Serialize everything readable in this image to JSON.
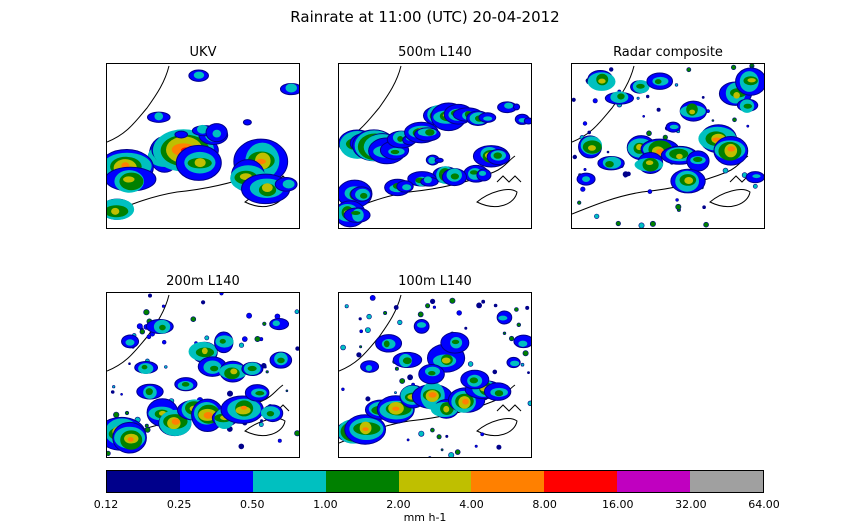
{
  "title": "Rainrate at 11:00 (UTC) 20-04-2012",
  "panels": [
    {
      "title": "UKV",
      "style": "smooth",
      "cells": [
        [
          0.3,
          0.55,
          4
        ],
        [
          0.4,
          0.52,
          6
        ],
        [
          0.48,
          0.6,
          4
        ],
        [
          0.55,
          0.43,
          3
        ],
        [
          0.1,
          0.62,
          5
        ],
        [
          0.12,
          0.7,
          4
        ],
        [
          0.05,
          0.88,
          4
        ],
        [
          0.8,
          0.58,
          5
        ],
        [
          0.72,
          0.68,
          4
        ],
        [
          0.82,
          0.75,
          4
        ],
        [
          0.95,
          0.15,
          2
        ],
        [
          0.47,
          0.07,
          2
        ],
        [
          0.27,
          0.32,
          2
        ],
        [
          0.93,
          0.72,
          2
        ],
        [
          0.5,
          0.4,
          2
        ],
        [
          0.73,
          0.36,
          1
        ],
        [
          0.57,
          0.42,
          2
        ],
        [
          0.38,
          0.42,
          1
        ]
      ]
    },
    {
      "title": "500m L140",
      "style": "band",
      "cells": [
        [
          0.1,
          0.48,
          5
        ],
        [
          0.18,
          0.49,
          6
        ],
        [
          0.25,
          0.52,
          4
        ],
        [
          0.32,
          0.45,
          3
        ],
        [
          0.42,
          0.41,
          4
        ],
        [
          0.52,
          0.31,
          5
        ],
        [
          0.62,
          0.3,
          4
        ],
        [
          0.72,
          0.32,
          3
        ],
        [
          0.78,
          0.55,
          4
        ],
        [
          0.7,
          0.66,
          3
        ],
        [
          0.55,
          0.67,
          4
        ],
        [
          0.42,
          0.7,
          3
        ],
        [
          0.3,
          0.74,
          3
        ],
        [
          0.08,
          0.78,
          4
        ],
        [
          0.05,
          0.9,
          4
        ],
        [
          0.87,
          0.26,
          2
        ],
        [
          0.94,
          0.33,
          2
        ],
        [
          0.48,
          0.58,
          2
        ]
      ]
    },
    {
      "title": "Radar composite",
      "style": "scatter",
      "cells": [
        [
          0.15,
          0.1,
          4
        ],
        [
          0.25,
          0.2,
          3
        ],
        [
          0.35,
          0.13,
          3
        ],
        [
          0.45,
          0.1,
          3
        ],
        [
          0.62,
          0.28,
          4
        ],
        [
          0.85,
          0.18,
          4
        ],
        [
          0.9,
          0.25,
          3
        ],
        [
          0.1,
          0.5,
          4
        ],
        [
          0.35,
          0.5,
          4
        ],
        [
          0.45,
          0.52,
          5
        ],
        [
          0.55,
          0.55,
          4
        ],
        [
          0.75,
          0.45,
          5
        ],
        [
          0.82,
          0.52,
          5
        ],
        [
          0.65,
          0.58,
          3
        ],
        [
          0.4,
          0.6,
          4
        ],
        [
          0.6,
          0.7,
          4
        ],
        [
          0.2,
          0.6,
          3
        ],
        [
          0.08,
          0.7,
          2
        ],
        [
          0.95,
          0.68,
          2
        ],
        [
          0.52,
          0.38,
          2
        ],
        [
          0.92,
          0.1,
          4
        ]
      ]
    },
    {
      "title": "200m L140",
      "style": "scatter",
      "cells": [
        [
          0.08,
          0.84,
          5
        ],
        [
          0.12,
          0.88,
          5
        ],
        [
          0.22,
          0.6,
          3
        ],
        [
          0.28,
          0.72,
          4
        ],
        [
          0.35,
          0.78,
          5
        ],
        [
          0.45,
          0.7,
          4
        ],
        [
          0.52,
          0.73,
          5
        ],
        [
          0.6,
          0.75,
          4
        ],
        [
          0.7,
          0.7,
          5
        ],
        [
          0.78,
          0.6,
          3
        ],
        [
          0.85,
          0.72,
          3
        ],
        [
          0.5,
          0.35,
          4
        ],
        [
          0.55,
          0.45,
          3
        ],
        [
          0.65,
          0.48,
          4
        ],
        [
          0.75,
          0.45,
          3
        ],
        [
          0.6,
          0.3,
          3
        ],
        [
          0.28,
          0.2,
          3
        ],
        [
          0.2,
          0.45,
          3
        ],
        [
          0.9,
          0.4,
          3
        ],
        [
          0.12,
          0.3,
          2
        ],
        [
          0.4,
          0.55,
          3
        ],
        [
          0.88,
          0.18,
          2
        ]
      ]
    },
    {
      "title": "100m L140",
      "style": "scatter",
      "cells": [
        [
          0.08,
          0.84,
          5
        ],
        [
          0.14,
          0.82,
          5
        ],
        [
          0.22,
          0.7,
          4
        ],
        [
          0.3,
          0.7,
          5
        ],
        [
          0.38,
          0.62,
          4
        ],
        [
          0.48,
          0.62,
          5
        ],
        [
          0.55,
          0.7,
          4
        ],
        [
          0.65,
          0.65,
          5
        ],
        [
          0.75,
          0.58,
          4
        ],
        [
          0.82,
          0.6,
          3
        ],
        [
          0.7,
          0.52,
          3
        ],
        [
          0.55,
          0.4,
          4
        ],
        [
          0.6,
          0.3,
          3
        ],
        [
          0.35,
          0.4,
          3
        ],
        [
          0.48,
          0.48,
          3
        ],
        [
          0.9,
          0.42,
          2
        ],
        [
          0.15,
          0.45,
          2
        ],
        [
          0.25,
          0.3,
          3
        ],
        [
          0.85,
          0.15,
          2
        ],
        [
          0.42,
          0.2,
          2
        ],
        [
          0.95,
          0.3,
          2
        ]
      ]
    }
  ],
  "colorbar": {
    "label": "mm h-1",
    "ticks": [
      "0.12",
      "0.25",
      "0.50",
      "1.00",
      "2.00",
      "4.00",
      "8.00",
      "16.00",
      "32.00",
      "64.00"
    ],
    "colors": [
      "#00008b",
      "#0000ff",
      "#00c0c0",
      "#008000",
      "#bfbf00",
      "#ff8000",
      "#ff0000",
      "#c000c0",
      "#a0a0a0"
    ]
  },
  "chart_data": {
    "type": "heatmap",
    "title": "Rainrate at 11:00 (UTC) 20-04-2012",
    "subplots": [
      "UKV",
      "500m L140",
      "Radar composite",
      "200m L140",
      "100m L140"
    ],
    "colorbar_label": "mm h-1",
    "levels": [
      0.12,
      0.25,
      0.5,
      1.0,
      2.0,
      4.0,
      8.0,
      16.0,
      32.0,
      64.0
    ],
    "level_colors": [
      "#00008b",
      "#0000ff",
      "#00c0c0",
      "#008000",
      "#bfbf00",
      "#ff8000",
      "#ff0000",
      "#c000c0",
      "#a0a0a0"
    ]
  }
}
